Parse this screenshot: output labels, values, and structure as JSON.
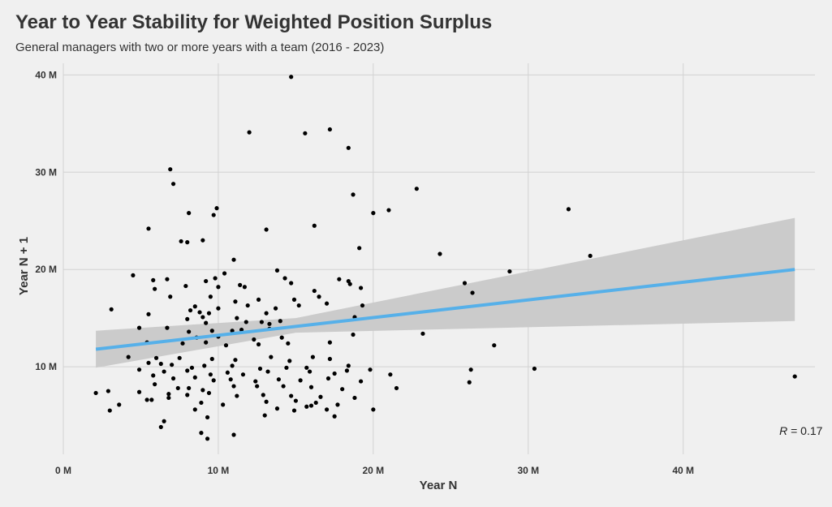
{
  "title": "Year to Year Stability for Weighted Position Surplus",
  "subtitle": "General managers with two or more years with a team (2016 - 2023)",
  "colors": {
    "background": "#f0f0f0",
    "grid": "#d2d2d2",
    "point": "#000000",
    "trend_line": "#56b0e9",
    "confidence_band": "#cbcbcb"
  },
  "chart_data": {
    "type": "scatter",
    "title": "Year to Year Stability for Weighted Position Surplus",
    "subtitle": "General managers with two or more years with a team (2016 - 2023)",
    "xlabel": "Year N",
    "ylabel": "Year N + 1",
    "xlim": [
      0,
      48.5
    ],
    "ylim": [
      1,
      41.2
    ],
    "x_ticks": [
      0,
      10,
      20,
      30,
      40
    ],
    "x_tick_labels": [
      "0 M",
      "10 M",
      "20 M",
      "30 M",
      "40 M"
    ],
    "y_ticks": [
      10,
      20,
      30,
      40
    ],
    "y_tick_labels": [
      "10 M",
      "20 M",
      "30 M",
      "40 M"
    ],
    "grid": true,
    "annotation": {
      "label": "R",
      "text": " = 0.17",
      "x": 46.2,
      "y": 3
    },
    "trend": {
      "x": [
        2.1,
        47.2
      ],
      "y": [
        11.8,
        20.0
      ],
      "ci_x": [
        2.1,
        15,
        47.2
      ],
      "ci_lower": [
        9.9,
        13.5,
        14.7
      ],
      "ci_upper": [
        13.7,
        15.0,
        25.3
      ]
    },
    "points": [
      [
        14.7,
        39.8
      ],
      [
        12.0,
        34.1
      ],
      [
        15.6,
        34.0
      ],
      [
        17.2,
        34.4
      ],
      [
        18.4,
        32.5
      ],
      [
        6.9,
        30.3
      ],
      [
        7.1,
        28.8
      ],
      [
        18.7,
        27.7
      ],
      [
        22.8,
        28.3
      ],
      [
        32.6,
        26.2
      ],
      [
        9.9,
        26.3
      ],
      [
        9.7,
        25.6
      ],
      [
        8.1,
        25.8
      ],
      [
        20.0,
        25.8
      ],
      [
        21.0,
        26.1
      ],
      [
        16.2,
        24.5
      ],
      [
        5.5,
        24.2
      ],
      [
        13.1,
        24.1
      ],
      [
        7.6,
        22.9
      ],
      [
        8.0,
        22.8
      ],
      [
        9.0,
        23.0
      ],
      [
        19.1,
        22.2
      ],
      [
        24.3,
        21.6
      ],
      [
        34.0,
        21.4
      ],
      [
        11.0,
        21.0
      ],
      [
        28.8,
        19.8
      ],
      [
        13.8,
        19.9
      ],
      [
        10.4,
        19.6
      ],
      [
        4.5,
        19.4
      ],
      [
        14.3,
        19.1
      ],
      [
        5.8,
        18.9
      ],
      [
        6.7,
        19.0
      ],
      [
        9.2,
        18.8
      ],
      [
        9.8,
        19.1
      ],
      [
        17.8,
        19.0
      ],
      [
        18.4,
        18.8
      ],
      [
        18.5,
        18.5
      ],
      [
        25.9,
        18.6
      ],
      [
        11.4,
        18.4
      ],
      [
        5.9,
        18.0
      ],
      [
        7.9,
        18.3
      ],
      [
        10.0,
        18.2
      ],
      [
        11.7,
        18.2
      ],
      [
        14.7,
        18.6
      ],
      [
        16.2,
        17.8
      ],
      [
        19.2,
        18.1
      ],
      [
        26.4,
        17.6
      ],
      [
        6.9,
        17.2
      ],
      [
        9.5,
        17.2
      ],
      [
        11.1,
        16.7
      ],
      [
        12.6,
        16.9
      ],
      [
        14.9,
        16.9
      ],
      [
        16.5,
        17.2
      ],
      [
        17.0,
        16.5
      ],
      [
        15.2,
        16.3
      ],
      [
        19.3,
        16.3
      ],
      [
        8.5,
        16.2
      ],
      [
        10.0,
        16.0
      ],
      [
        11.9,
        16.3
      ],
      [
        13.7,
        16.0
      ],
      [
        3.1,
        15.9
      ],
      [
        8.2,
        15.8
      ],
      [
        8.8,
        15.6
      ],
      [
        9.4,
        15.5
      ],
      [
        13.1,
        15.5
      ],
      [
        5.5,
        15.4
      ],
      [
        9.0,
        15.1
      ],
      [
        11.2,
        15.0
      ],
      [
        12.8,
        14.6
      ],
      [
        14.0,
        14.7
      ],
      [
        18.8,
        15.1
      ],
      [
        8.0,
        14.9
      ],
      [
        9.2,
        14.5
      ],
      [
        11.8,
        14.6
      ],
      [
        13.3,
        14.4
      ],
      [
        6.7,
        14.0
      ],
      [
        10.9,
        13.7
      ],
      [
        4.9,
        14.0
      ],
      [
        8.1,
        13.6
      ],
      [
        9.6,
        13.7
      ],
      [
        11.5,
        13.8
      ],
      [
        13.3,
        13.9
      ],
      [
        8.6,
        13.0
      ],
      [
        10.0,
        13.1
      ],
      [
        12.3,
        12.8
      ],
      [
        14.1,
        13.0
      ],
      [
        18.7,
        13.3
      ],
      [
        23.2,
        13.4
      ],
      [
        5.4,
        12.5
      ],
      [
        7.7,
        12.4
      ],
      [
        9.2,
        12.5
      ],
      [
        10.5,
        12.2
      ],
      [
        12.6,
        12.3
      ],
      [
        14.5,
        12.4
      ],
      [
        17.2,
        12.5
      ],
      [
        27.8,
        12.2
      ],
      [
        4.2,
        11.0
      ],
      [
        6.0,
        10.9
      ],
      [
        7.5,
        10.9
      ],
      [
        9.6,
        10.8
      ],
      [
        11.1,
        10.7
      ],
      [
        13.4,
        11.0
      ],
      [
        14.6,
        10.6
      ],
      [
        16.1,
        11.0
      ],
      [
        17.2,
        10.8
      ],
      [
        5.5,
        10.4
      ],
      [
        6.3,
        10.3
      ],
      [
        7.0,
        10.2
      ],
      [
        8.3,
        9.9
      ],
      [
        9.1,
        10.1
      ],
      [
        10.9,
        10.1
      ],
      [
        12.7,
        9.8
      ],
      [
        14.4,
        9.9
      ],
      [
        15.7,
        9.9
      ],
      [
        18.4,
        10.1
      ],
      [
        19.8,
        9.7
      ],
      [
        26.3,
        9.7
      ],
      [
        30.4,
        9.8
      ],
      [
        4.9,
        9.7
      ],
      [
        6.5,
        9.5
      ],
      [
        8.0,
        9.6
      ],
      [
        9.5,
        9.2
      ],
      [
        10.6,
        9.4
      ],
      [
        11.6,
        9.2
      ],
      [
        13.2,
        9.5
      ],
      [
        15.9,
        9.5
      ],
      [
        17.5,
        9.3
      ],
      [
        18.3,
        9.6
      ],
      [
        21.1,
        9.2
      ],
      [
        47.2,
        9.0
      ],
      [
        5.8,
        9.1
      ],
      [
        7.1,
        8.8
      ],
      [
        8.5,
        8.9
      ],
      [
        9.7,
        8.6
      ],
      [
        10.8,
        8.7
      ],
      [
        12.4,
        8.5
      ],
      [
        13.9,
        8.7
      ],
      [
        15.3,
        8.6
      ],
      [
        17.1,
        8.8
      ],
      [
        19.2,
        8.5
      ],
      [
        26.2,
        8.4
      ],
      [
        5.9,
        8.2
      ],
      [
        7.4,
        7.8
      ],
      [
        8.1,
        7.8
      ],
      [
        9.0,
        7.6
      ],
      [
        11.0,
        8.0
      ],
      [
        12.5,
        8.0
      ],
      [
        14.2,
        8.0
      ],
      [
        16.0,
        7.9
      ],
      [
        18.0,
        7.7
      ],
      [
        21.5,
        7.8
      ],
      [
        2.1,
        7.3
      ],
      [
        2.9,
        7.5
      ],
      [
        4.9,
        7.4
      ],
      [
        6.8,
        7.2
      ],
      [
        8.0,
        7.1
      ],
      [
        9.4,
        7.3
      ],
      [
        11.2,
        7.0
      ],
      [
        12.9,
        7.1
      ],
      [
        14.7,
        7.0
      ],
      [
        16.6,
        6.9
      ],
      [
        18.8,
        6.8
      ],
      [
        3.6,
        6.1
      ],
      [
        5.4,
        6.6
      ],
      [
        5.7,
        6.6
      ],
      [
        6.8,
        6.8
      ],
      [
        8.9,
        6.3
      ],
      [
        10.3,
        6.1
      ],
      [
        13.1,
        6.4
      ],
      [
        15.0,
        6.5
      ],
      [
        16.0,
        6.0
      ],
      [
        16.3,
        6.3
      ],
      [
        17.7,
        6.1
      ],
      [
        20.0,
        5.6
      ],
      [
        3.0,
        5.5
      ],
      [
        8.5,
        5.6
      ],
      [
        13.8,
        5.7
      ],
      [
        14.9,
        5.5
      ],
      [
        15.7,
        5.9
      ],
      [
        17.0,
        5.6
      ],
      [
        13.0,
        5.0
      ],
      [
        17.5,
        4.9
      ],
      [
        6.5,
        4.4
      ],
      [
        6.3,
        3.8
      ],
      [
        9.3,
        4.8
      ],
      [
        8.9,
        3.2
      ],
      [
        9.3,
        2.6
      ],
      [
        11.0,
        3.0
      ]
    ]
  }
}
